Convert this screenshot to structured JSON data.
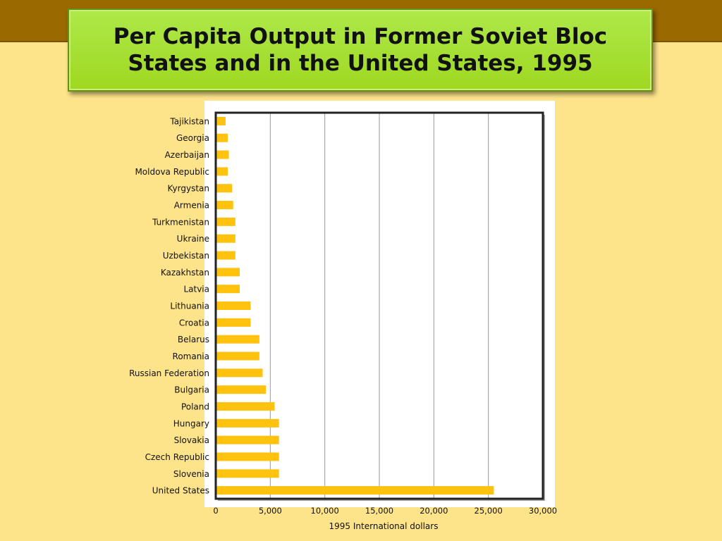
{
  "title": "Per Capita Output in Former Soviet Bloc States and in the United States, 1995",
  "colors": {
    "background": "#fde38a",
    "top_band": "#9a6a00",
    "title_box": "#a3dc24",
    "bar": "#ffc20e"
  },
  "chart_data": {
    "type": "bar",
    "orientation": "horizontal",
    "title": "Per Capita Output in Former Soviet Bloc States and in the United States, 1995",
    "xlabel": "1995 International dollars",
    "ylabel": "",
    "xlim": [
      0,
      30000
    ],
    "xticks": [
      0,
      5000,
      10000,
      15000,
      20000,
      25000,
      30000
    ],
    "xtick_labels": [
      "0",
      "5,000",
      "10,000",
      "15,000",
      "20,000",
      "25,000",
      "30,000"
    ],
    "grid": "vertical",
    "categories": [
      "Tajikistan",
      "Georgia",
      "Azerbaijan",
      "Moldova Republic",
      "Kyrgystan",
      "Armenia",
      "Turkmenistan",
      "Ukraine",
      "Uzbekistan",
      "Kazakhstan",
      "Latvia",
      "Lithuania",
      "Croatia",
      "Belarus",
      "Romania",
      "Russian Federation",
      "Bulgaria",
      "Poland",
      "Hungary",
      "Slovakia",
      "Czech Republic",
      "Slovenia",
      "United States"
    ],
    "values": [
      900,
      1100,
      1200,
      1100,
      1500,
      1600,
      1800,
      1800,
      1800,
      2200,
      2200,
      3200,
      3200,
      4000,
      4000,
      4300,
      4600,
      5400,
      5800,
      5800,
      5800,
      5800,
      25500
    ]
  }
}
